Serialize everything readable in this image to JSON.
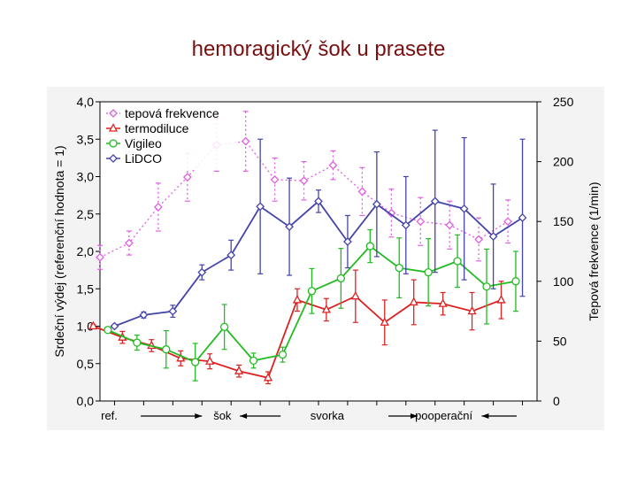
{
  "page": {
    "title": "hemoragický šok u prasete"
  },
  "chart_data": {
    "type": "line",
    "title": "hemoragický šok u prasete",
    "ylabel": "Srdeční výdej (referenční hodnota = 1)",
    "y2label": "Tepová frekvence (1/min)",
    "ylim": [
      0,
      4
    ],
    "y2lim": [
      0,
      250
    ],
    "yticks": [
      "0,0",
      "0,5",
      "1,0",
      "1,5",
      "2,0",
      "2,5",
      "3,0",
      "3,5",
      "4,0"
    ],
    "y2ticks": [
      "0",
      "50",
      "100",
      "150",
      "200",
      "250"
    ],
    "x": [
      1,
      2,
      3,
      4,
      5,
      6,
      7,
      8,
      9,
      10,
      11,
      12,
      13,
      14,
      15
    ],
    "xlim": [
      0.5,
      15.5
    ],
    "phase_labels": [
      {
        "label": "ref.",
        "x": 0.82
      },
      {
        "label": "šok",
        "x": 4.7
      },
      {
        "label": "svorka",
        "x": 8.3
      },
      {
        "label": "pooperační",
        "x": 12.3
      }
    ],
    "phase_arrows": [
      {
        "from": 1.9,
        "to": 4.0
      },
      {
        "from": 6.7,
        "to": 5.3
      },
      {
        "from": 10.4,
        "to": 11.4
      },
      {
        "from": 14.8,
        "to": 13.6
      }
    ],
    "legend_position": "top-left",
    "series": [
      {
        "name": "tepová frekvence",
        "axis": "right",
        "color": "#e060e0",
        "style": "dotted",
        "marker": "diamond",
        "points": [
          {
            "x": 0.5,
            "y": 120,
            "err": 10
          },
          {
            "x": 1.5,
            "y": 132,
            "err": 10
          },
          {
            "x": 2.5,
            "y": 162,
            "err": 20
          },
          {
            "x": 3.5,
            "y": 187,
            "err": 20
          },
          {
            "x": 4.5,
            "y": 214,
            "err": 22
          },
          {
            "x": 5.5,
            "y": 217,
            "err": 25
          },
          {
            "x": 6.5,
            "y": 185,
            "err": 18
          },
          {
            "x": 7.5,
            "y": 184,
            "err": 16
          },
          {
            "x": 8.5,
            "y": 197,
            "err": 12
          },
          {
            "x": 9.5,
            "y": 175,
            "err": 20
          },
          {
            "x": 10.5,
            "y": 157,
            "err": 20
          },
          {
            "x": 11.5,
            "y": 150,
            "err": 20
          },
          {
            "x": 12.5,
            "y": 147,
            "err": 20
          },
          {
            "x": 13.5,
            "y": 135,
            "err": 18
          },
          {
            "x": 14.5,
            "y": 150,
            "err": 18
          }
        ]
      },
      {
        "name": "termodiluce",
        "axis": "left",
        "color": "#dd2222",
        "style": "solid",
        "marker": "triangle",
        "points": [
          {
            "x": 0.27,
            "y": 1.0,
            "err": 0.02
          },
          {
            "x": 1.27,
            "y": 0.85,
            "err": 0.08
          },
          {
            "x": 2.27,
            "y": 0.74,
            "err": 0.08
          },
          {
            "x": 3.27,
            "y": 0.57,
            "err": 0.1
          },
          {
            "x": 4.27,
            "y": 0.53,
            "err": 0.1
          },
          {
            "x": 5.27,
            "y": 0.4,
            "err": 0.08
          },
          {
            "x": 6.27,
            "y": 0.31,
            "err": 0.08
          },
          {
            "x": 7.27,
            "y": 1.35,
            "err": 0.15
          },
          {
            "x": 8.27,
            "y": 1.22,
            "err": 0.15
          },
          {
            "x": 9.27,
            "y": 1.4,
            "err": 0.35
          },
          {
            "x": 10.27,
            "y": 1.05,
            "err": 0.3
          },
          {
            "x": 11.27,
            "y": 1.32,
            "err": 0.3
          },
          {
            "x": 12.27,
            "y": 1.3,
            "err": 0.15
          },
          {
            "x": 13.27,
            "y": 1.2,
            "err": 0.25
          },
          {
            "x": 14.27,
            "y": 1.35,
            "err": 0.25
          }
        ]
      },
      {
        "name": "Vigileo",
        "axis": "left",
        "color": "#22bb22",
        "style": "solid",
        "marker": "circle",
        "points": [
          {
            "x": 0.77,
            "y": 0.95,
            "err": 0.02
          },
          {
            "x": 1.77,
            "y": 0.78,
            "err": 0.1
          },
          {
            "x": 2.77,
            "y": 0.69,
            "err": 0.25
          },
          {
            "x": 3.77,
            "y": 0.52,
            "err": 0.25
          },
          {
            "x": 4.77,
            "y": 0.99,
            "err": 0.3
          },
          {
            "x": 5.77,
            "y": 0.54,
            "err": 0.1
          },
          {
            "x": 6.77,
            "y": 0.62,
            "err": 0.1
          },
          {
            "x": 7.77,
            "y": 1.47,
            "err": 0.3
          },
          {
            "x": 8.77,
            "y": 1.64,
            "err": 0.4
          },
          {
            "x": 9.77,
            "y": 2.07,
            "err": 0.22
          },
          {
            "x": 10.77,
            "y": 1.78,
            "err": 0.4
          },
          {
            "x": 11.77,
            "y": 1.72,
            "err": 0.45
          },
          {
            "x": 12.77,
            "y": 1.87,
            "err": 0.35
          },
          {
            "x": 13.77,
            "y": 1.53,
            "err": 0.5
          },
          {
            "x": 14.77,
            "y": 1.6,
            "err": 0.4
          }
        ]
      },
      {
        "name": "LiDCO",
        "axis": "left",
        "color": "#4444aa",
        "style": "solid",
        "marker": "diamond",
        "points": [
          {
            "x": 1.0,
            "y": 1.0,
            "err": 0.02
          },
          {
            "x": 2.0,
            "y": 1.15,
            "err": 0.04
          },
          {
            "x": 3.0,
            "y": 1.2,
            "err": 0.08
          },
          {
            "x": 4.0,
            "y": 1.72,
            "err": 0.1
          },
          {
            "x": 5.0,
            "y": 1.95,
            "err": 0.2
          },
          {
            "x": 6.0,
            "y": 2.6,
            "err": 0.9
          },
          {
            "x": 7.0,
            "y": 2.33,
            "err": 0.65
          },
          {
            "x": 8.0,
            "y": 2.67,
            "err": 0.15
          },
          {
            "x": 9.0,
            "y": 2.13,
            "err": 0.35
          },
          {
            "x": 10.0,
            "y": 2.63,
            "err": 0.7
          },
          {
            "x": 11.0,
            "y": 2.35,
            "err": 0.65
          },
          {
            "x": 12.0,
            "y": 2.67,
            "err": 0.95
          },
          {
            "x": 13.0,
            "y": 2.57,
            "err": 0.95
          },
          {
            "x": 14.0,
            "y": 2.2,
            "err": 0.7
          },
          {
            "x": 15.0,
            "y": 2.45,
            "err": 1.05
          }
        ]
      }
    ]
  }
}
